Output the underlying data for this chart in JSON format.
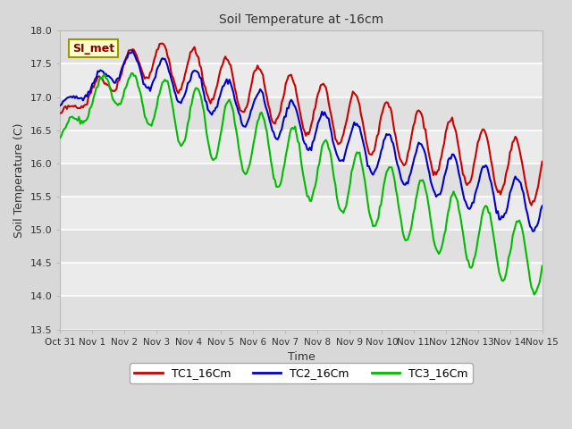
{
  "title": "Soil Temperature at -16cm",
  "xlabel": "Time",
  "ylabel": "Soil Temperature (C)",
  "ylim": [
    13.5,
    18.0
  ],
  "yticks": [
    13.5,
    14.0,
    14.5,
    15.0,
    15.5,
    16.0,
    16.5,
    17.0,
    17.5,
    18.0
  ],
  "legend_labels": [
    "TC1_16Cm",
    "TC2_16Cm",
    "TC3_16Cm"
  ],
  "legend_colors": [
    "#cc0000",
    "#0000cc",
    "#00bb00"
  ],
  "annotation_text": "SI_met",
  "annotation_bg": "#ffffcc",
  "annotation_border": "#999900",
  "xtick_labels": [
    "Oct 31",
    "Nov 1",
    "Nov 2",
    "Nov 3",
    "Nov 4",
    "Nov 5",
    "Nov 6",
    "Nov 7",
    "Nov 8",
    "Nov 9",
    "Nov 10",
    "Nov 11",
    "Nov 12",
    "Nov 13",
    "Nov 14",
    "Nov 15"
  ],
  "n_days": 15.0,
  "n_points": 360,
  "figsize": [
    6.4,
    4.8
  ],
  "dpi": 100,
  "bg_color": "#d8d8d8",
  "band_colors": [
    "#e0e0e0",
    "#ebebeb"
  ]
}
